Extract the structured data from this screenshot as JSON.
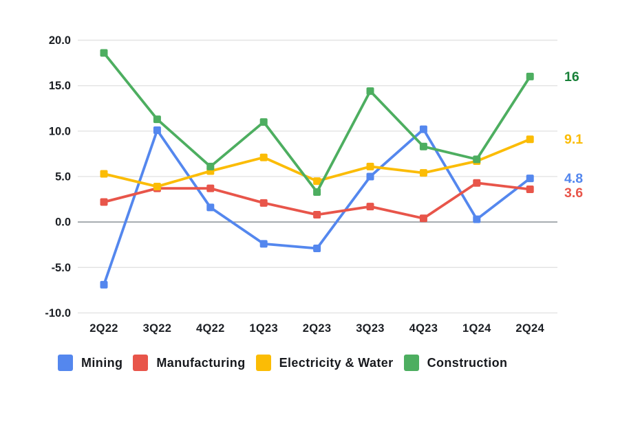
{
  "chart_data": {
    "type": "line",
    "title": "",
    "categories": [
      "2Q22",
      "3Q22",
      "4Q22",
      "1Q23",
      "2Q23",
      "3Q23",
      "4Q23",
      "1Q24",
      "2Q24"
    ],
    "series": [
      {
        "name": "Mining",
        "color": "#5487EE",
        "values": [
          -6.9,
          10.1,
          1.6,
          -2.4,
          -2.9,
          5.0,
          10.2,
          0.3,
          4.8
        ],
        "end_label": "4.8",
        "end_label_color": "#5487EE"
      },
      {
        "name": "Manufacturing",
        "color": "#E8554A",
        "values": [
          2.2,
          3.7,
          3.7,
          2.1,
          0.8,
          1.7,
          0.4,
          4.3,
          3.6
        ],
        "end_label": "3.6",
        "end_label_color": "#E8554A"
      },
      {
        "name": "Electricity & Water",
        "color": "#FBBC05",
        "values": [
          5.3,
          3.9,
          5.6,
          7.1,
          4.5,
          6.1,
          5.4,
          6.7,
          9.1
        ],
        "end_label": "9.1",
        "end_label_color": "#FBBC05"
      },
      {
        "name": "Construction",
        "color": "#4DAE60",
        "values": [
          18.6,
          11.3,
          6.1,
          11.0,
          3.3,
          14.4,
          8.3,
          6.9,
          16.0
        ],
        "end_label": "16",
        "end_label_color": "#188038"
      }
    ],
    "y_axis": {
      "min": -10,
      "max": 20,
      "step": 5,
      "tick_labels": [
        "-10.0",
        "-5.0",
        "0.0",
        "5.0",
        "10.0",
        "15.0",
        "20.0"
      ]
    },
    "xlabel": "",
    "ylabel": "",
    "grid": true,
    "zero_line": true,
    "marker_shape": "square",
    "legend_position": "bottom"
  },
  "colors": {
    "background": "#FFFFFF",
    "grid": "#E3E3E3",
    "zero_line": "#9BA0A5",
    "axis_text": "#1B1E23"
  }
}
